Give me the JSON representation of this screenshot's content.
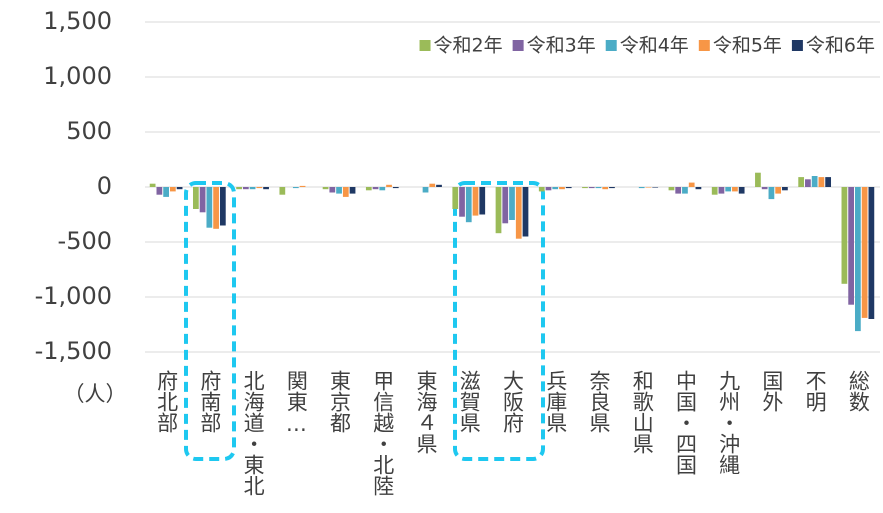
{
  "chart_data": {
    "type": "bar",
    "y_unit": "（人）",
    "categories": [
      "府北部",
      "府南部",
      "北海道・東北",
      "関東…",
      "東京都",
      "甲信越・北陸",
      "東海４県",
      "滋賀県",
      "大阪府",
      "兵庫県",
      "奈良県",
      "和歌山県",
      "中国・四国",
      "九州・沖縄",
      "国外",
      "不明",
      "総数"
    ],
    "series": [
      {
        "name": "令和2年",
        "color": "#9bbb59",
        "values": [
          30,
          -200,
          -20,
          -70,
          -20,
          -30,
          0,
          -200,
          -420,
          -40,
          -10,
          0,
          -30,
          -70,
          130,
          90,
          -880
        ]
      },
      {
        "name": "令和3年",
        "color": "#8064a2",
        "values": [
          -70,
          -230,
          -20,
          0,
          -50,
          -20,
          0,
          -270,
          -330,
          -30,
          -10,
          0,
          -60,
          -60,
          -20,
          70,
          -1070
        ]
      },
      {
        "name": "令和4年",
        "color": "#4bacc6",
        "values": [
          -90,
          -370,
          -20,
          -10,
          -60,
          -30,
          -50,
          -320,
          -300,
          -20,
          -10,
          -10,
          -60,
          -40,
          -110,
          100,
          -1310
        ]
      },
      {
        "name": "令和5年",
        "color": "#f79646",
        "values": [
          -40,
          -380,
          -10,
          10,
          -90,
          20,
          30,
          -260,
          -470,
          -20,
          -20,
          -5,
          40,
          -40,
          -60,
          90,
          -1190
        ]
      },
      {
        "name": "令和6年",
        "color": "#1f3864",
        "values": [
          -20,
          -350,
          -20,
          0,
          -60,
          -10,
          20,
          -250,
          -450,
          -10,
          -10,
          -5,
          -20,
          -60,
          -30,
          90,
          -1200
        ]
      }
    ],
    "ylim": [
      -1500,
      1500
    ],
    "yticks": [
      {
        "value": -1500,
        "label": "-1,500"
      },
      {
        "value": -1000,
        "label": "-1,000"
      },
      -500,
      0,
      500,
      {
        "value": 1000,
        "label": "1,000"
      },
      {
        "value": 1500,
        "label": "1,500"
      }
    ],
    "grid": true,
    "legend": "top-right"
  }
}
